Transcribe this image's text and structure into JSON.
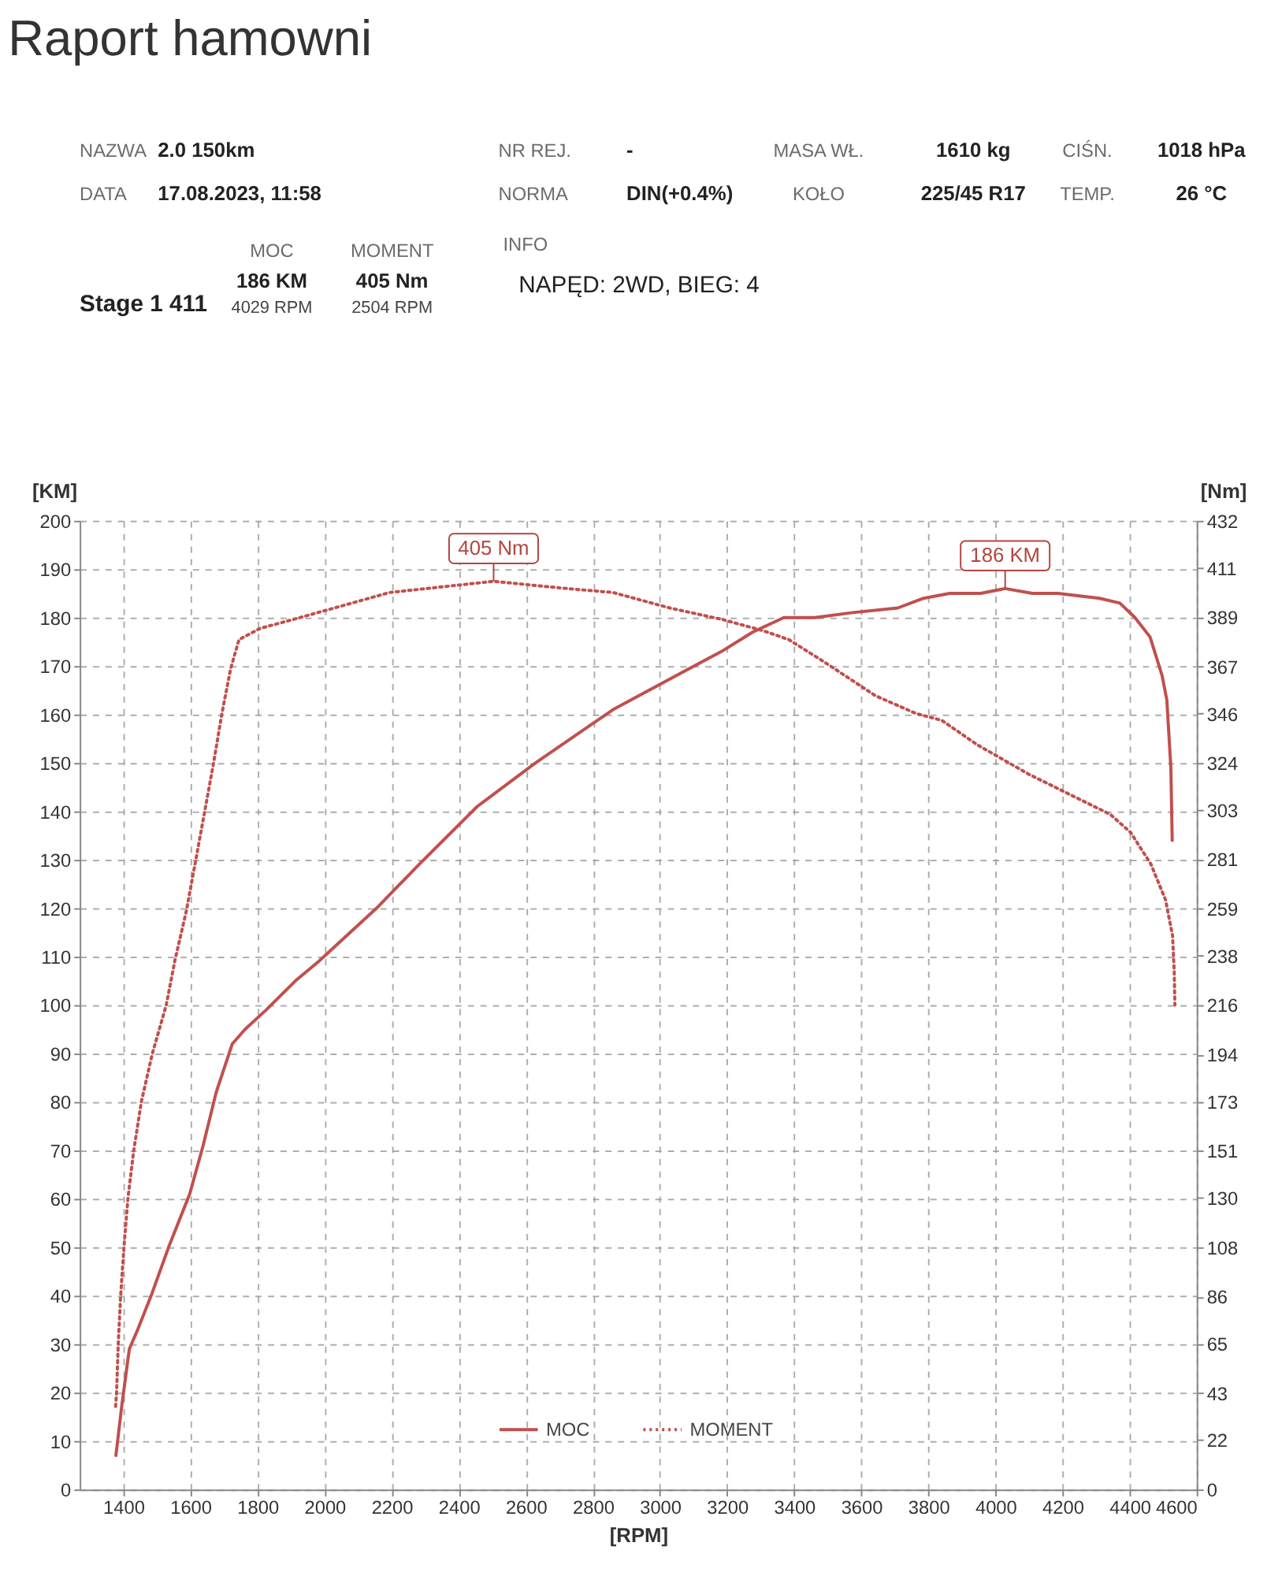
{
  "chart_data": {
    "type": "line",
    "title": "Raport hamowni",
    "xlabel": "[RPM]",
    "ylabel": "[KM]",
    "y2label": "[Nm]",
    "xlim": [
      1270,
      4600
    ],
    "xticks": [
      1400,
      1600,
      1800,
      2000,
      2200,
      2400,
      2600,
      2800,
      3000,
      3200,
      3400,
      3600,
      3800,
      4000,
      4200,
      4400,
      4600
    ],
    "ylim": [
      0,
      200
    ],
    "yticks": [
      0,
      10,
      20,
      30,
      40,
      50,
      60,
      70,
      80,
      90,
      100,
      110,
      120,
      130,
      140,
      150,
      160,
      170,
      180,
      190,
      200
    ],
    "y2lim": [
      0,
      432
    ],
    "y2ticks": [
      0,
      22,
      43,
      65,
      86,
      108,
      130,
      151,
      173,
      194,
      216,
      238,
      259,
      281,
      303,
      324,
      346,
      367,
      389,
      411,
      432
    ],
    "grid": true,
    "legend": "bottom",
    "series": [
      {
        "name": "MOC",
        "color": "#c0504d",
        "line_style": "solid",
        "x": [
          1378,
          1395,
          1418,
          1443,
          1483,
          1535,
          1598,
          1638,
          1677,
          1725,
          1763,
          1826,
          1913,
          1982,
          2155,
          2281,
          2455,
          2629,
          2860,
          3074,
          3183,
          3276,
          3369,
          3462,
          3570,
          3709,
          3786,
          3864,
          3956,
          4029,
          4110,
          4186,
          4310,
          4371,
          4416,
          4461,
          4497,
          4511,
          4523,
          4527
        ],
        "values": [
          7,
          17,
          29,
          33,
          40,
          50,
          61,
          71,
          82,
          92,
          95,
          99,
          105,
          109,
          120,
          129,
          141,
          150,
          161,
          169,
          173,
          177,
          180,
          180,
          181,
          182,
          184,
          185,
          185,
          186,
          185,
          185,
          184,
          183,
          180,
          176,
          168,
          163,
          149,
          134
        ]
      },
      {
        "name": "MOMENT",
        "color": "#c0504d",
        "line_style": "dotted",
        "axis": "y2",
        "x": [
          1377,
          1380,
          1385,
          1392,
          1402,
          1414,
          1431,
          1454,
          1486,
          1528,
          1554,
          1588,
          1614,
          1641,
          1668,
          1694,
          1720,
          1745,
          1808,
          1931,
          2194,
          2504,
          2705,
          2860,
          3032,
          3185,
          3307,
          3384,
          3490,
          3642,
          3764,
          3840,
          3947,
          4099,
          4221,
          4343,
          4403,
          4463,
          4507,
          4528,
          4533,
          4535
        ],
        "values": [
          37,
          43,
          65,
          86,
          108,
          130,
          151,
          173,
          194,
          216,
          236,
          258,
          279,
          301,
          323,
          346,
          366,
          379,
          384,
          389,
          400,
          405,
          402,
          400,
          393,
          388,
          383,
          379,
          369,
          354,
          346,
          343,
          332,
          319,
          310,
          301,
          293,
          279,
          263,
          247,
          231,
          216
        ]
      }
    ],
    "annotations": [
      "NAZWA",
      "2.0 150km",
      "NR REJ.",
      "-",
      "MASA WŁ.",
      "1610 kg",
      "CIŚN.",
      "1018 hPa",
      "DATA",
      "17.08.2023, 11:58",
      "NORMA",
      "DIN(+0.4%)",
      "KOŁO",
      "225/45 R17",
      "TEMP.",
      "26 °C",
      "MOC",
      "MOMENT",
      "INFO",
      "Stage 1 411",
      "186 KM",
      "405 Nm",
      "NAPĘD: 2WD,  BIEG: 4",
      "4029 RPM",
      "2504 RPM",
      {
        "text": "405 Nm",
        "x": 2504,
        "y": 187.5
      },
      {
        "text": "186 KM",
        "x": 4029,
        "y": 186
      }
    ]
  }
}
